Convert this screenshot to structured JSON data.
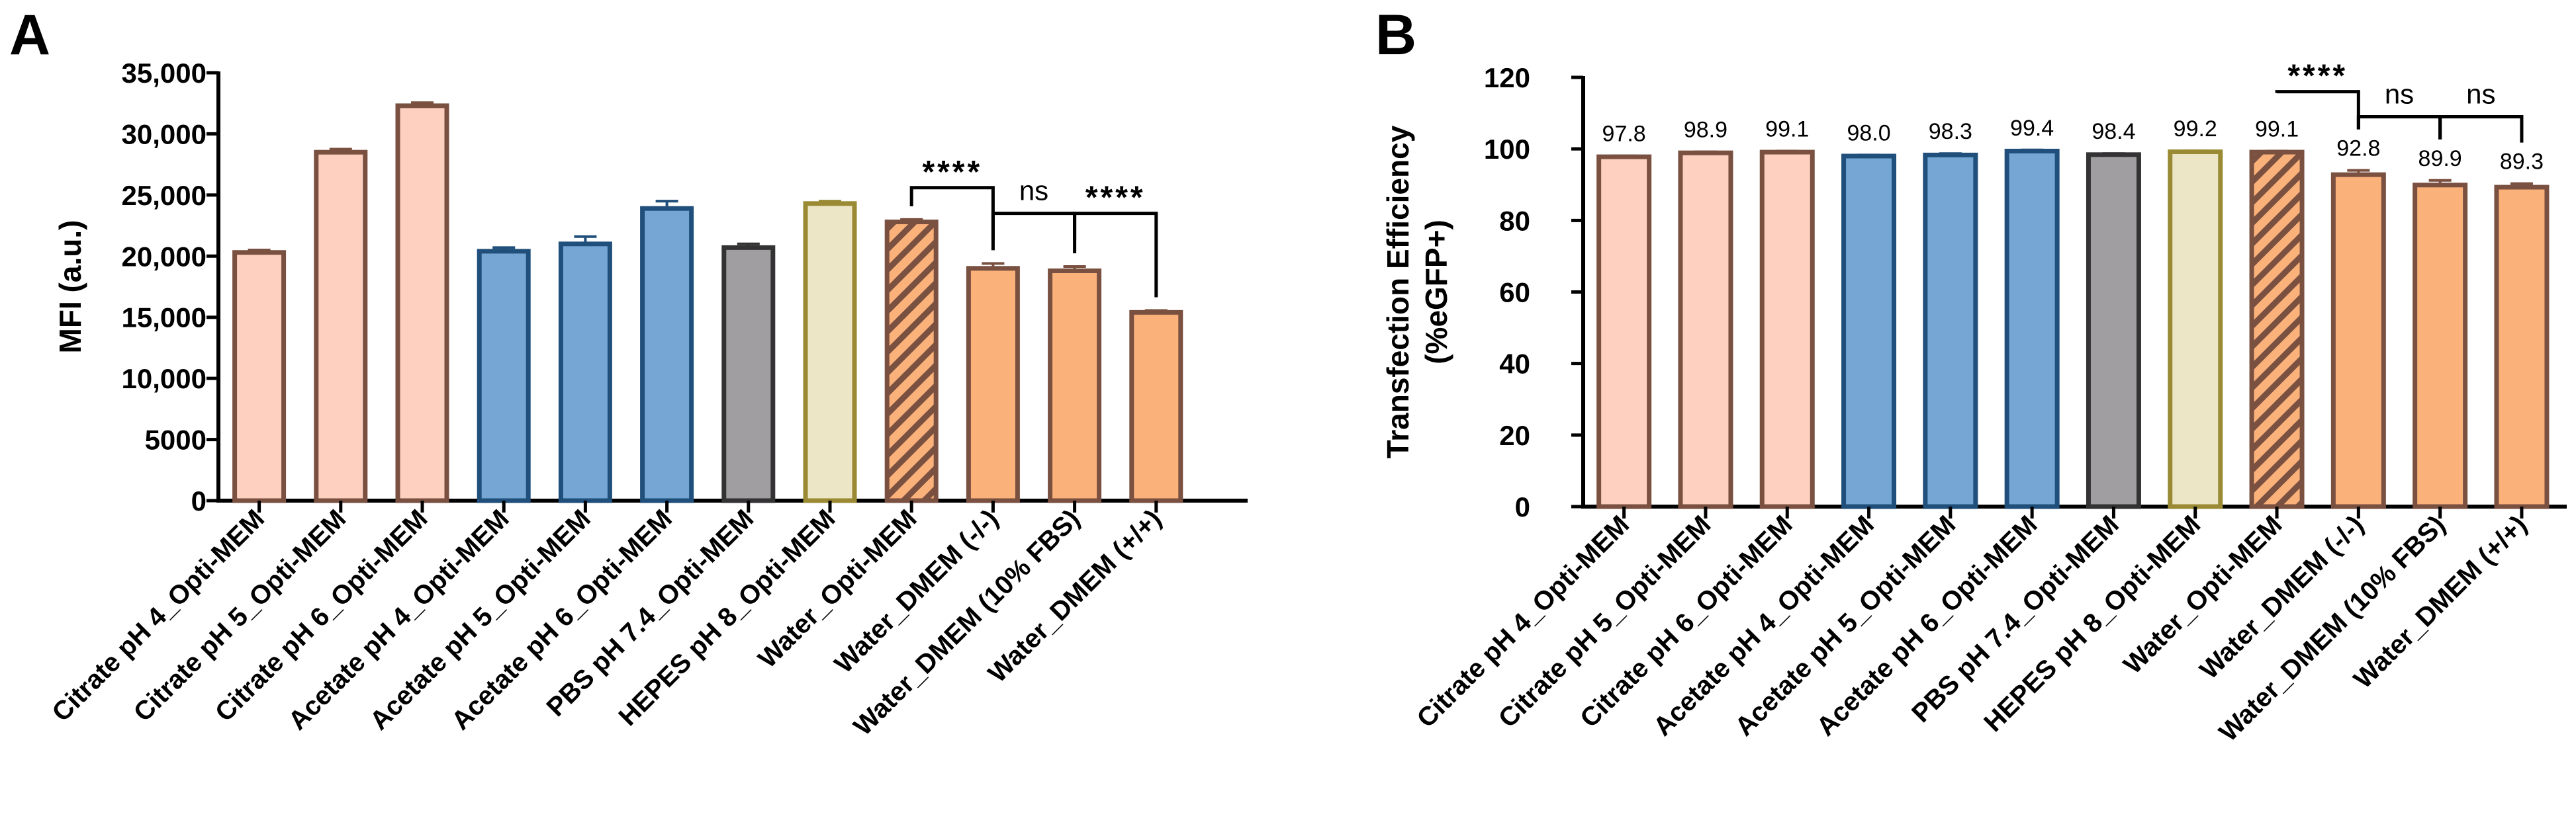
{
  "palette": {
    "salmon": "#FDD0C0",
    "blue": "#76A7D4",
    "gray": "#A09EA1",
    "cream": "#EDE6C6",
    "orange": "#FBB27A",
    "brown_edge": "#7A5041",
    "blue_edge": "#1F4F7A",
    "gray_edge": "#333333",
    "olive_edge": "#9A8A34"
  },
  "chart_data": [
    {
      "type": "bar",
      "panel": "A",
      "ylabel": "MFI (a.u.)",
      "ylim": [
        0,
        35000
      ],
      "yticks": [
        0,
        5000,
        10000,
        15000,
        20000,
        25000,
        30000,
        35000
      ],
      "ytick_labels": [
        "0",
        "5000",
        "10,000",
        "15,000",
        "20,000",
        "25,000",
        "30,000",
        "35,000"
      ],
      "categories": [
        "Citrate pH 4_Opti-MEM",
        "Citrate pH 5_Opti-MEM",
        "Citrate pH 6_Opti-MEM",
        "Acetate pH 4_Opti-MEM",
        "Acetate pH 5_Opti-MEM",
        "Acetate pH 6_Opti-MEM",
        "PBS pH 7.4_Opti-MEM",
        "HEPES pH 8_Opti-MEM",
        "Water_Opti-MEM",
        "Water_DMEM (-/-)",
        "Water_DMEM (10% FBS)",
        "Water_DMEM (+/+)"
      ],
      "values": [
        20300,
        28500,
        32300,
        20400,
        21000,
        23900,
        20700,
        24300,
        22800,
        19000,
        18800,
        15400
      ],
      "errors": [
        200,
        250,
        250,
        300,
        600,
        600,
        300,
        200,
        200,
        400,
        350,
        150
      ],
      "fills": [
        "salmon",
        "salmon",
        "salmon",
        "blue",
        "blue",
        "blue",
        "gray",
        "cream",
        "orange",
        "orange",
        "orange",
        "orange"
      ],
      "edges": [
        "brown_edge",
        "brown_edge",
        "brown_edge",
        "blue_edge",
        "blue_edge",
        "blue_edge",
        "gray_edge",
        "olive_edge",
        "brown_edge",
        "brown_edge",
        "brown_edge",
        "brown_edge"
      ],
      "hatched": [
        false,
        false,
        false,
        false,
        false,
        false,
        false,
        false,
        true,
        false,
        false,
        false
      ],
      "value_labels": [],
      "significance": [
        {
          "from": 8,
          "to": 9,
          "label": "****"
        },
        {
          "from": 9,
          "to": 10,
          "label": "ns"
        },
        {
          "from": 10,
          "to": 11,
          "label": "****"
        }
      ]
    },
    {
      "type": "bar",
      "panel": "B",
      "ylabel": "Transfection Efficiency",
      "ylabel2": "(%eGFP+)",
      "ylim": [
        0,
        120
      ],
      "yticks": [
        0,
        20,
        40,
        60,
        80,
        100,
        120
      ],
      "ytick_labels": [
        "0",
        "20",
        "40",
        "60",
        "80",
        "100",
        "120"
      ],
      "categories": [
        "Citrate pH 4_Opti-MEM",
        "Citrate pH 5_Opti-MEM",
        "Citrate pH 6_Opti-MEM",
        "Acetate pH 4_Opti-MEM",
        "Acetate pH 5_Opti-MEM",
        "Acetate pH 6_Opti-MEM",
        "PBS pH 7.4_Opti-MEM",
        "HEPES pH 8_Opti-MEM",
        "Water_Opti-MEM",
        "Water_DMEM (-/-)",
        "Water_DMEM (10% FBS)",
        "Water_DMEM (+/+)"
      ],
      "values": [
        97.8,
        98.9,
        99.1,
        98.0,
        98.3,
        99.4,
        98.4,
        99.2,
        99.1,
        92.8,
        89.9,
        89.3
      ],
      "errors": [
        0.3,
        0.3,
        0.3,
        0.3,
        0.4,
        0.3,
        0.3,
        0.3,
        0.3,
        1.2,
        1.3,
        1.0
      ],
      "fills": [
        "salmon",
        "salmon",
        "salmon",
        "blue",
        "blue",
        "blue",
        "gray",
        "cream",
        "orange",
        "orange",
        "orange",
        "orange"
      ],
      "edges": [
        "brown_edge",
        "brown_edge",
        "brown_edge",
        "blue_edge",
        "blue_edge",
        "blue_edge",
        "gray_edge",
        "olive_edge",
        "brown_edge",
        "brown_edge",
        "brown_edge",
        "brown_edge"
      ],
      "hatched": [
        false,
        false,
        false,
        false,
        false,
        false,
        false,
        false,
        true,
        false,
        false,
        false
      ],
      "value_labels": [
        "97.8",
        "98.9",
        "99.1",
        "98.0",
        "98.3",
        "99.4",
        "98.4",
        "99.2",
        "99.1",
        "92.8",
        "89.9",
        "89.3"
      ],
      "significance": [
        {
          "from": 8,
          "to": 9,
          "label": "****"
        },
        {
          "from": 9,
          "to": 10,
          "label": "ns"
        },
        {
          "from": 10,
          "to": 11,
          "label": "ns"
        }
      ]
    }
  ]
}
